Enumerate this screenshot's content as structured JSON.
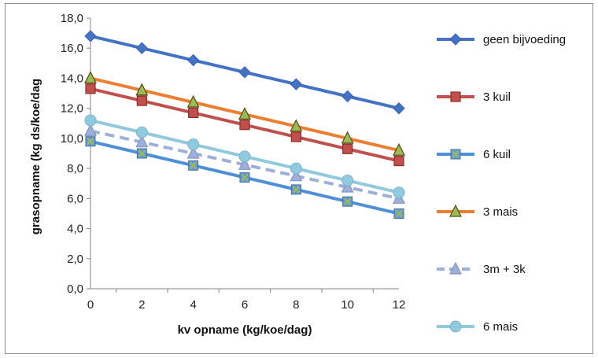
{
  "chart_data": {
    "type": "line",
    "title": "",
    "xlabel": "kv opname (kg/koe/dag)",
    "ylabel": "grasopname (kg ds/koe/dag",
    "categories": [
      "0",
      "2",
      "4",
      "6",
      "8",
      "10",
      "12"
    ],
    "x": [
      0,
      2,
      4,
      6,
      8,
      10,
      12
    ],
    "xlim": [
      0,
      12
    ],
    "ylim": [
      0,
      18
    ],
    "yticks": [
      "0,0",
      "2,0",
      "4,0",
      "6,0",
      "8,0",
      "10,0",
      "12,0",
      "14,0",
      "16,0",
      "18,0"
    ],
    "grid": false,
    "legend_position": "right",
    "series": [
      {
        "name": "geen bijvoeding",
        "color": "#4472c4",
        "marker": "diamond",
        "dashed": false,
        "values": [
          16.8,
          16.0,
          15.2,
          14.4,
          13.6,
          12.8,
          12.0
        ]
      },
      {
        "name": "3 kuil",
        "color": "#c0504d",
        "marker": "square",
        "dashed": false,
        "values": [
          13.3,
          12.5,
          11.7,
          10.9,
          10.1,
          9.3,
          8.5
        ]
      },
      {
        "name": "6 kuil",
        "color": "#4f8fd6",
        "marker": "square-x",
        "dashed": false,
        "values": [
          9.8,
          9.0,
          8.2,
          7.4,
          6.6,
          5.8,
          5.0
        ]
      },
      {
        "name": "3 mais",
        "color": "#ed7d31",
        "marker": "triangle",
        "dashed": false,
        "values": [
          14.0,
          13.2,
          12.4,
          11.6,
          10.8,
          10.0,
          9.2
        ]
      },
      {
        "name": "3m + 3k",
        "color": "#9fb0d8",
        "marker": "triangle",
        "dashed": true,
        "values": [
          10.5,
          9.75,
          9.0,
          8.25,
          7.5,
          6.75,
          6.0
        ]
      },
      {
        "name": "6 mais",
        "color": "#91c9de",
        "marker": "circle",
        "dashed": false,
        "values": [
          11.2,
          10.4,
          9.6,
          8.8,
          8.0,
          7.2,
          6.4
        ]
      }
    ]
  }
}
